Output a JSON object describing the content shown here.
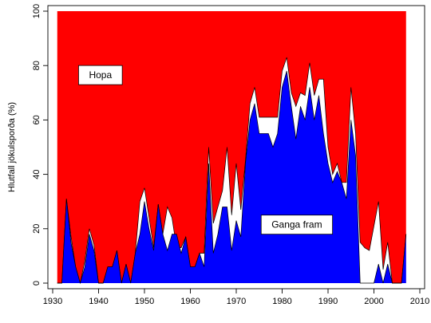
{
  "chart_data": {
    "type": "area",
    "xlabel": "",
    "ylabel": "Hlutfall jökulsporða (%)",
    "xlim": [
      1930,
      2010
    ],
    "ylim": [
      0,
      100
    ],
    "x_ticks": [
      1930,
      1940,
      1950,
      1960,
      1970,
      1980,
      1990,
      2000,
      2010
    ],
    "y_ticks": [
      0,
      20,
      40,
      60,
      80,
      100
    ],
    "grid": false,
    "colors": {
      "retreat": "#ff0000",
      "stationary": "#ffffff",
      "advance": "#0000ff",
      "outline": "#000000"
    },
    "annotations": [
      {
        "text": "Hopa",
        "x": 1940.4,
        "y": 76.5
      },
      {
        "text": "Ganga fram",
        "x": 1983.2,
        "y": 21.5
      }
    ],
    "years": [
      1931,
      1932,
      1933,
      1934,
      1935,
      1936,
      1937,
      1938,
      1939,
      1940,
      1941,
      1942,
      1943,
      1944,
      1945,
      1946,
      1947,
      1948,
      1949,
      1950,
      1951,
      1952,
      1953,
      1954,
      1955,
      1956,
      1957,
      1958,
      1959,
      1960,
      1961,
      1962,
      1963,
      1964,
      1965,
      1966,
      1967,
      1968,
      1969,
      1970,
      1971,
      1972,
      1973,
      1974,
      1975,
      1976,
      1977,
      1978,
      1979,
      1980,
      1981,
      1982,
      1983,
      1984,
      1985,
      1986,
      1987,
      1988,
      1989,
      1990,
      1991,
      1992,
      1993,
      1994,
      1995,
      1996,
      1997,
      1998,
      1999,
      2000,
      2001,
      2002,
      2003,
      2004,
      2005,
      2006,
      2007
    ],
    "series": [
      {
        "name": "Ganga fram",
        "values": [
          0,
          0,
          31,
          15,
          6,
          0,
          6,
          18,
          12,
          0,
          0,
          6,
          6,
          12,
          0,
          7,
          0,
          11,
          18,
          30,
          20,
          12,
          29,
          18,
          12,
          18,
          18,
          11,
          17,
          6,
          6,
          11,
          6,
          44,
          11,
          18,
          28,
          28,
          12,
          23,
          17,
          44,
          60,
          66,
          55,
          55,
          55,
          50,
          55,
          72,
          78,
          65,
          53,
          65,
          60,
          72,
          60,
          69,
          55,
          44,
          37,
          41,
          37,
          31,
          60,
          47,
          0,
          0,
          0,
          0,
          7,
          0,
          7,
          0,
          0,
          0,
          18
        ]
      },
      {
        "name": "",
        "values": [
          0,
          0,
          31,
          17,
          6,
          0,
          8,
          20,
          14,
          0,
          0,
          6,
          6,
          12,
          0,
          7,
          0,
          11,
          30,
          35,
          24,
          13,
          29,
          18,
          28,
          24,
          13,
          13,
          17,
          6,
          6,
          11,
          11,
          50,
          22,
          28,
          34,
          50,
          25,
          44,
          27,
          45,
          66,
          72,
          61,
          61,
          61,
          61,
          61,
          78,
          83,
          70,
          65,
          70,
          69,
          81,
          69,
          75,
          75,
          50,
          40,
          44,
          37,
          37,
          72,
          55,
          15,
          13,
          12,
          21,
          30,
          5,
          15,
          0,
          0,
          0,
          18
        ]
      }
    ]
  }
}
